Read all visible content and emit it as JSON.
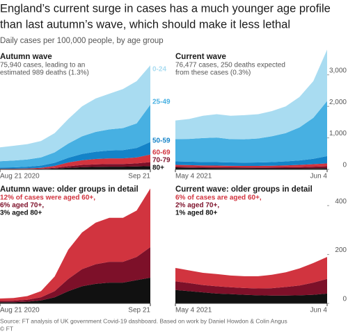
{
  "title": [
    "England’s current surge in cases has a much younger age profile",
    "than last autumn’s wave, which should make it less lethal"
  ],
  "subtitle": "Daily cases per 100,000 people, by age group",
  "source": "Source: FT analysis of UK government Covid-19 dashboard. Based on work by Daniel Howdon & Colin Angus",
  "copyright": "© FT",
  "chart_data": [
    {
      "type": "area",
      "stacked": true,
      "title": "Autumn wave",
      "notes": [
        "75,940 cases, leading to an",
        "estimated 989 deaths (1.3%)"
      ],
      "note_colors": [
        "#555555",
        "#555555"
      ],
      "categories": [
        "Aug 21 2020",
        null,
        null,
        null,
        null,
        null,
        null,
        null,
        null,
        null,
        null,
        "Sep 21"
      ],
      "ylim": [
        0,
        3700
      ],
      "series": [
        {
          "name": "80+",
          "color": "#111111",
          "values": [
            5,
            5,
            7,
            12,
            25,
            50,
            70,
            80,
            85,
            85,
            95,
            105
          ]
        },
        {
          "name": "70-79",
          "color": "#7d1029",
          "values": [
            5,
            6,
            8,
            13,
            25,
            50,
            70,
            80,
            85,
            85,
            95,
            125
          ]
        },
        {
          "name": "60-69",
          "color": "#d1343f",
          "values": [
            10,
            11,
            15,
            25,
            60,
            120,
            150,
            170,
            180,
            180,
            190,
            240
          ]
        },
        {
          "name": "50-59",
          "color": "#1483c8",
          "values": [
            40,
            45,
            55,
            70,
            100,
            150,
            200,
            230,
            250,
            260,
            300,
            400
          ]
        },
        {
          "name": "25-49",
          "color": "#47b0e2",
          "values": [
            200,
            215,
            230,
            260,
            330,
            450,
            560,
            630,
            670,
            700,
            780,
            1180
          ]
        },
        {
          "name": "0-24",
          "color": "#a9dcf1",
          "values": [
            440,
            468,
            485,
            520,
            610,
            780,
            950,
            1060,
            1130,
            1240,
            1340,
            1250
          ]
        }
      ]
    },
    {
      "type": "area",
      "stacked": true,
      "title": "Current wave",
      "notes": [
        "76,477 cases, 250 deaths expected",
        "from these cases (0.3%)"
      ],
      "note_colors": [
        "#555555",
        "#555555"
      ],
      "categories": [
        "May 4 2021",
        null,
        null,
        null,
        null,
        null,
        null,
        null,
        null,
        null,
        null,
        "Jun 4"
      ],
      "ylim": [
        0,
        3700
      ],
      "yticks": [
        0,
        {
          "value": 1000,
          "label": "1,000"
        },
        {
          "value": 2000,
          "label": "2,000"
        },
        {
          "value": 3000,
          "label": "3,000"
        }
      ],
      "series": [
        {
          "color": "#111111",
          "values": [
            55,
            50,
            45,
            40,
            38,
            35,
            33,
            32,
            32,
            33,
            35,
            40
          ]
        },
        {
          "color": "#7d1029",
          "values": [
            35,
            33,
            30,
            30,
            28,
            28,
            28,
            30,
            35,
            40,
            50,
            60
          ]
        },
        {
          "color": "#d1343f",
          "values": [
            55,
            52,
            50,
            50,
            48,
            48,
            50,
            55,
            60,
            70,
            80,
            90
          ]
        },
        {
          "color": "#1483c8",
          "values": [
            110,
            110,
            110,
            110,
            105,
            105,
            110,
            115,
            125,
            140,
            170,
            230
          ]
        },
        {
          "color": "#47b0e2",
          "values": [
            705,
            720,
            760,
            780,
            740,
            740,
            760,
            820,
            900,
            1050,
            1300,
            1750
          ]
        },
        {
          "color": "#a9dcf1",
          "values": [
            590,
            635,
            705,
            740,
            741,
            764,
            769,
            798,
            848,
            967,
            1165,
            1630
          ]
        }
      ]
    },
    {
      "type": "area",
      "stacked": true,
      "title": "Autumn wave: older groups in detail",
      "notes": [
        "12% of cases were aged 60+,",
        "6% aged 70+,",
        "3% aged 80+"
      ],
      "note_colors": [
        "#d1343f",
        "#7d1029",
        "#111111"
      ],
      "categories": [
        "Aug 21 2020",
        null,
        null,
        null,
        null,
        null,
        null,
        null,
        null,
        null,
        null,
        "Sep 21"
      ],
      "ylim": [
        0,
        480
      ],
      "series": [
        {
          "color": "#111111",
          "values": [
            5,
            5,
            7,
            12,
            25,
            50,
            70,
            80,
            85,
            85,
            95,
            105
          ]
        },
        {
          "color": "#7d1029",
          "values": [
            5,
            6,
            8,
            13,
            25,
            50,
            70,
            80,
            85,
            85,
            95,
            125
          ]
        },
        {
          "color": "#d1343f",
          "values": [
            10,
            11,
            15,
            25,
            60,
            120,
            150,
            170,
            180,
            180,
            190,
            240
          ]
        }
      ]
    },
    {
      "type": "area",
      "stacked": true,
      "title": "Current wave: older groups in detail",
      "notes": [
        "6% of cases are aged 60+,",
        "2% aged 70+,",
        "1% aged 80+"
      ],
      "note_colors": [
        "#d1343f",
        "#7d1029",
        "#111111"
      ],
      "categories": [
        "May 4 2021",
        null,
        null,
        null,
        null,
        null,
        null,
        null,
        null,
        null,
        null,
        "Jun 4"
      ],
      "ylim": [
        0,
        480
      ],
      "yticks": [
        0,
        200,
        400
      ],
      "series": [
        {
          "color": "#111111",
          "values": [
            55,
            50,
            45,
            40,
            38,
            35,
            33,
            32,
            32,
            33,
            35,
            40
          ]
        },
        {
          "color": "#7d1029",
          "values": [
            35,
            33,
            30,
            30,
            28,
            28,
            28,
            30,
            35,
            40,
            50,
            60
          ]
        },
        {
          "color": "#d1343f",
          "values": [
            55,
            52,
            50,
            50,
            48,
            48,
            50,
            55,
            60,
            70,
            80,
            90
          ]
        }
      ]
    }
  ]
}
